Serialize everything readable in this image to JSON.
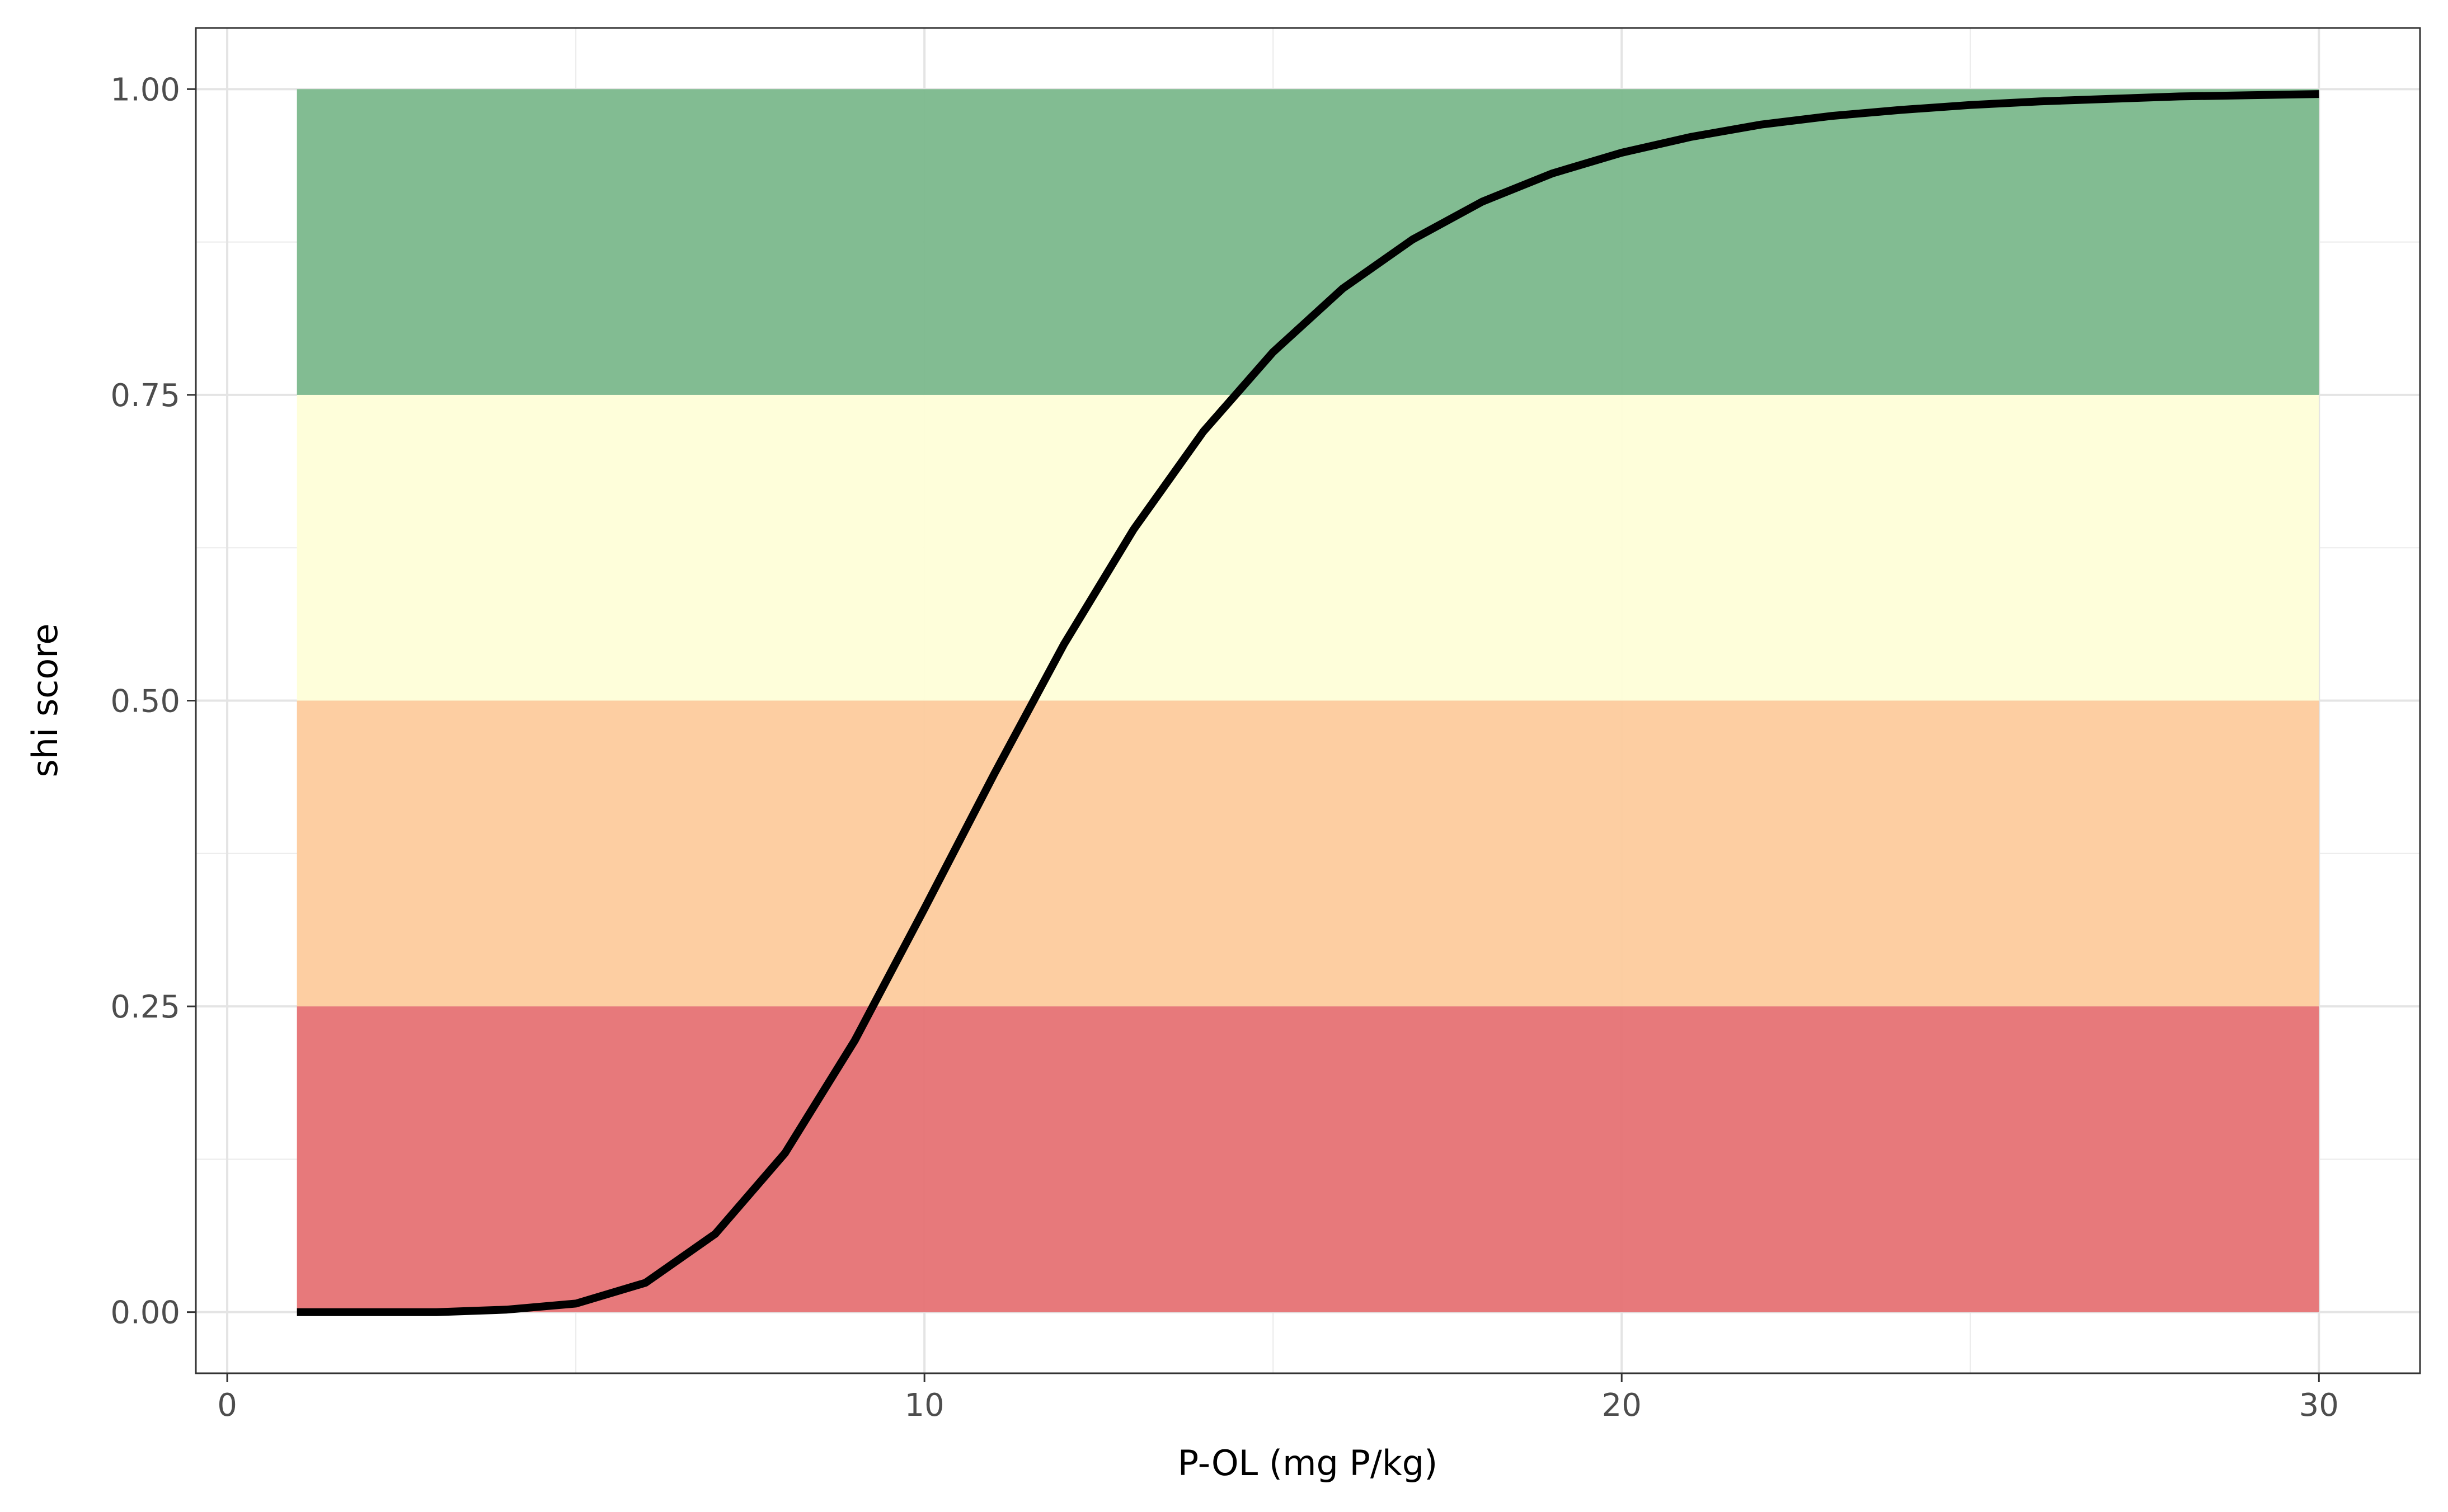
{
  "chart_data": {
    "type": "line",
    "xlabel": "P-OL (mg P/kg)",
    "ylabel": "shi score",
    "xlim": [
      -0.45,
      31.45
    ],
    "ylim": [
      -0.05,
      1.05
    ],
    "x_ticks": [
      0,
      10,
      20,
      30
    ],
    "y_ticks": [
      0.0,
      0.25,
      0.5,
      0.75,
      1.0
    ],
    "x_tick_labels": [
      "0",
      "10",
      "20",
      "30"
    ],
    "y_tick_labels": [
      "0.00",
      "0.25",
      "0.50",
      "0.75",
      "1.00"
    ],
    "grid": true,
    "legend": "none",
    "bands": [
      {
        "ymin": 0.0,
        "ymax": 0.25,
        "xmin": 1,
        "xmax": 30,
        "color": "#e67476"
      },
      {
        "ymin": 0.25,
        "ymax": 0.5,
        "xmin": 1,
        "xmax": 30,
        "color": "#fdcc9e"
      },
      {
        "ymin": 0.5,
        "ymax": 0.75,
        "xmin": 1,
        "xmax": 30,
        "color": "#fefed8"
      },
      {
        "ymin": 0.75,
        "ymax": 1.0,
        "xmin": 1,
        "xmax": 30,
        "color": "#7db98e"
      }
    ],
    "series": [
      {
        "color": "#000000",
        "x": [
          1,
          2,
          3,
          4,
          5,
          6,
          7,
          8,
          9,
          10,
          11,
          12,
          13,
          14,
          15,
          16,
          17,
          18,
          19,
          20,
          21,
          22,
          23,
          24,
          25,
          26,
          27,
          28,
          29,
          30
        ],
        "y": [
          0.0,
          0.0,
          0.0,
          0.002,
          0.007,
          0.024,
          0.064,
          0.13,
          0.222,
          0.33,
          0.44,
          0.546,
          0.64,
          0.72,
          0.785,
          0.837,
          0.877,
          0.908,
          0.931,
          0.948,
          0.961,
          0.971,
          0.978,
          0.983,
          0.987,
          0.99,
          0.992,
          0.994,
          0.995,
          0.996
        ]
      }
    ]
  }
}
